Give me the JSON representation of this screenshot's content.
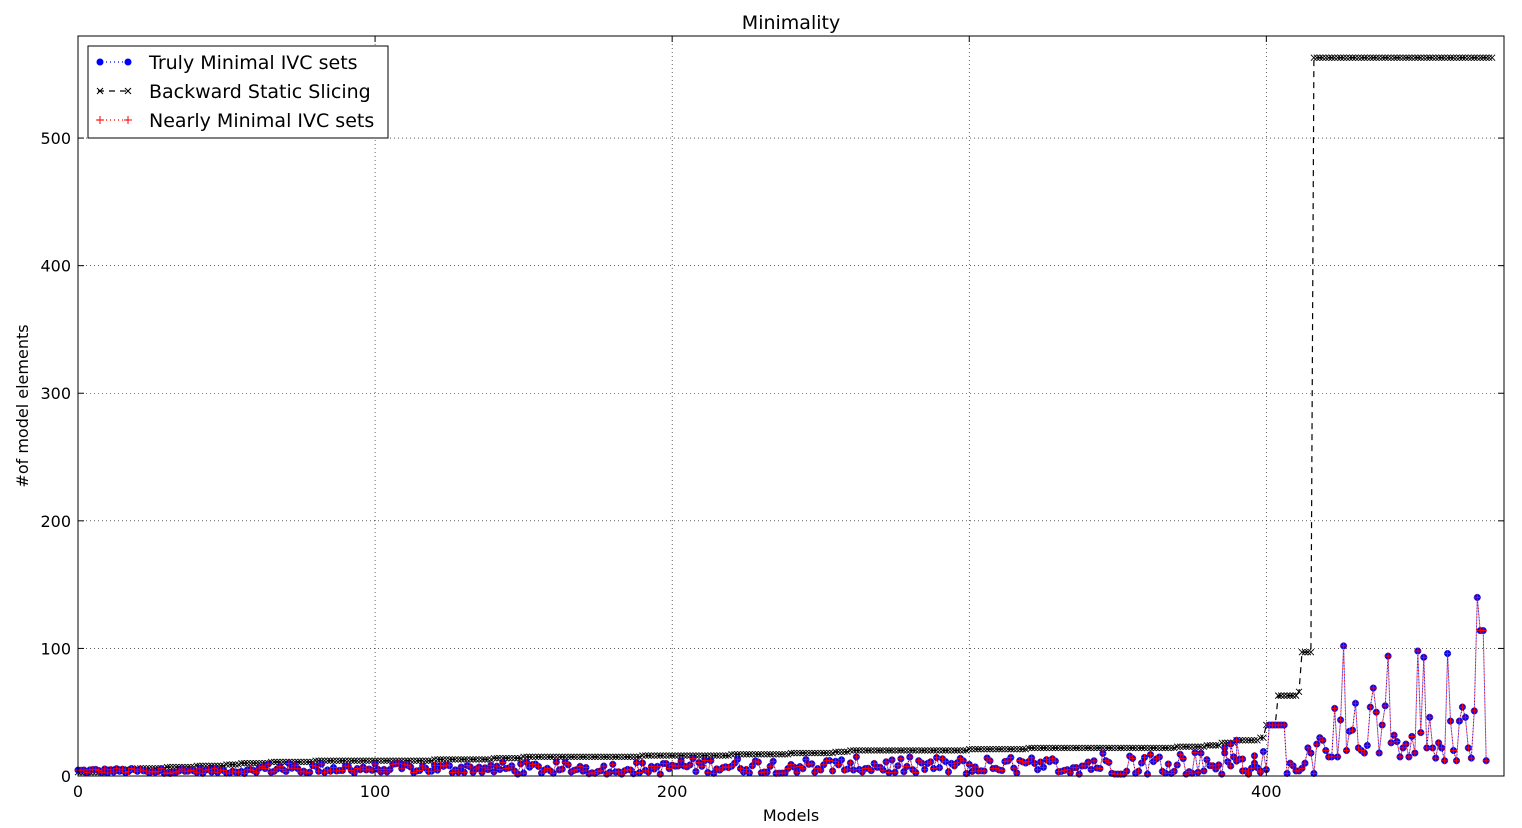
{
  "chart_data": {
    "type": "line",
    "title": "Minimality",
    "xlabel": "Models",
    "ylabel": "#of model elements",
    "xlim": [
      0,
      480
    ],
    "ylim": [
      0,
      580
    ],
    "xticks": [
      0,
      100,
      200,
      300,
      400
    ],
    "yticks": [
      0,
      100,
      200,
      300,
      400,
      500
    ],
    "grid": true,
    "legend_position": "top-left",
    "series": [
      {
        "name": "Truly Minimal IVC sets",
        "color": "#0000ff",
        "marker": "circle",
        "linestyle": "dotted",
        "segments": [
          {
            "x_start": 0,
            "x_end": 60,
            "base": 4,
            "amp": 2
          },
          {
            "x_start": 60,
            "x_end": 140,
            "base": 6,
            "amp": 4
          },
          {
            "x_start": 140,
            "x_end": 200,
            "base": 6,
            "amp": 5
          },
          {
            "x_start": 200,
            "x_end": 260,
            "base": 8,
            "amp": 6
          },
          {
            "x_start": 260,
            "x_end": 340,
            "base": 8,
            "amp": 7
          },
          {
            "x_start": 340,
            "x_end": 400,
            "base": 10,
            "amp": 10
          }
        ],
        "points": [
          [
            386,
            22
          ],
          [
            388,
            25
          ],
          [
            390,
            28
          ],
          [
            392,
            4
          ],
          [
            394,
            3
          ],
          [
            396,
            10
          ],
          [
            398,
            4
          ],
          [
            400,
            5
          ],
          [
            401,
            40
          ],
          [
            402,
            40
          ],
          [
            403,
            40
          ],
          [
            404,
            40
          ],
          [
            405,
            40
          ],
          [
            406,
            40
          ],
          [
            407,
            2
          ],
          [
            408,
            10
          ],
          [
            409,
            8
          ],
          [
            410,
            4
          ],
          [
            411,
            4
          ],
          [
            412,
            6
          ],
          [
            413,
            10
          ],
          [
            414,
            22
          ],
          [
            415,
            18
          ],
          [
            416,
            2
          ],
          [
            417,
            25
          ],
          [
            418,
            30
          ],
          [
            419,
            28
          ],
          [
            420,
            20
          ],
          [
            421,
            15
          ],
          [
            422,
            15
          ],
          [
            423,
            53
          ],
          [
            424,
            15
          ],
          [
            425,
            44
          ],
          [
            426,
            102
          ],
          [
            427,
            20
          ],
          [
            428,
            35
          ],
          [
            429,
            36
          ],
          [
            430,
            57
          ],
          [
            431,
            22
          ],
          [
            432,
            20
          ],
          [
            433,
            18
          ],
          [
            434,
            24
          ],
          [
            435,
            54
          ],
          [
            436,
            69
          ],
          [
            437,
            50
          ],
          [
            438,
            18
          ],
          [
            439,
            40
          ],
          [
            440,
            55
          ],
          [
            441,
            94
          ],
          [
            442,
            26
          ],
          [
            443,
            32
          ],
          [
            444,
            27
          ],
          [
            445,
            15
          ],
          [
            446,
            22
          ],
          [
            447,
            25
          ],
          [
            448,
            15
          ],
          [
            449,
            31
          ],
          [
            450,
            18
          ],
          [
            451,
            98
          ],
          [
            452,
            34
          ],
          [
            453,
            93
          ],
          [
            454,
            22
          ],
          [
            455,
            46
          ],
          [
            456,
            22
          ],
          [
            457,
            14
          ],
          [
            458,
            26
          ],
          [
            459,
            22
          ],
          [
            460,
            12
          ],
          [
            461,
            96
          ],
          [
            462,
            43
          ],
          [
            463,
            20
          ],
          [
            464,
            12
          ],
          [
            465,
            43
          ],
          [
            466,
            54
          ],
          [
            467,
            46
          ],
          [
            468,
            22
          ],
          [
            469,
            14
          ],
          [
            470,
            51
          ],
          [
            471,
            140
          ],
          [
            472,
            114
          ],
          [
            473,
            114
          ],
          [
            474,
            12
          ]
        ]
      },
      {
        "name": "Backward Static Slicing",
        "color": "#000000",
        "marker": "x",
        "linestyle": "dashed",
        "steps": [
          [
            0,
            3
          ],
          [
            10,
            5
          ],
          [
            20,
            6
          ],
          [
            30,
            7
          ],
          [
            40,
            8
          ],
          [
            50,
            9
          ],
          [
            55,
            10
          ],
          [
            65,
            11
          ],
          [
            80,
            12
          ],
          [
            100,
            12
          ],
          [
            120,
            13
          ],
          [
            140,
            14
          ],
          [
            150,
            15
          ],
          [
            170,
            15
          ],
          [
            190,
            16
          ],
          [
            210,
            16
          ],
          [
            220,
            17
          ],
          [
            240,
            18
          ],
          [
            255,
            19
          ],
          [
            260,
            20
          ],
          [
            300,
            21
          ],
          [
            320,
            22
          ],
          [
            350,
            22
          ],
          [
            370,
            23
          ],
          [
            380,
            24
          ],
          [
            385,
            26
          ],
          [
            390,
            28
          ],
          [
            398,
            30
          ],
          [
            400,
            40
          ],
          [
            403,
            40
          ],
          [
            404,
            63
          ],
          [
            411,
            66
          ],
          [
            412,
            97
          ],
          [
            415,
            97
          ],
          [
            416,
            563
          ],
          [
            476,
            563
          ]
        ]
      },
      {
        "name": "Nearly Minimal IVC sets",
        "color": "#ff0000",
        "marker": "plus",
        "linestyle": "dotted"
      }
    ]
  }
}
